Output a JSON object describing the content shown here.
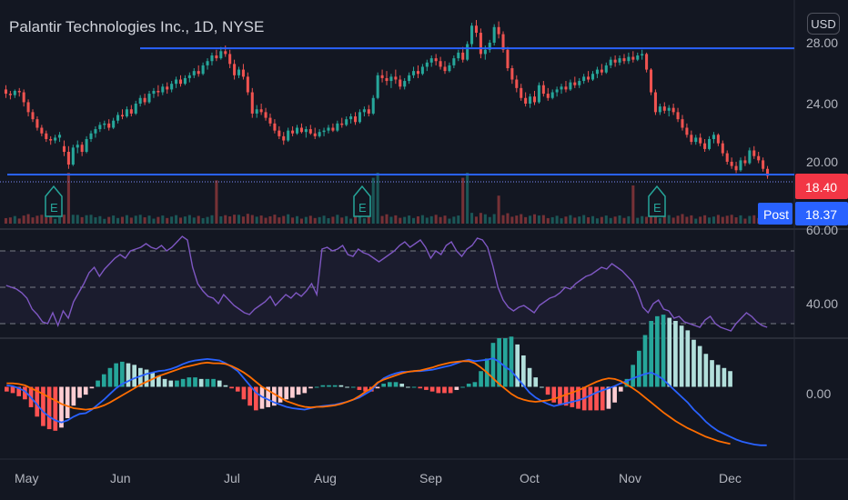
{
  "header": {
    "title": "Palantir Technologies Inc., 1D, NYSE",
    "currency": "USD"
  },
  "price_axis": {
    "ticks": [
      "28.00",
      "24.00",
      "20.00"
    ],
    "last_price": "18.40",
    "post_label": "Post",
    "post_price": "18.37"
  },
  "rsi_axis": {
    "ticks": [
      "60.00",
      "40.00"
    ]
  },
  "macd_axis": {
    "ticks": [
      "0.00"
    ]
  },
  "time_axis": {
    "ticks": [
      "May",
      "Jun",
      "Jul",
      "Aug",
      "Sep",
      "Oct",
      "Nov",
      "Dec"
    ]
  },
  "colors": {
    "up": "#26a69a",
    "down": "#ef5350",
    "line": "#2962ff",
    "rsi": "#7e57c2",
    "macd": "#2962ff",
    "signal": "#ff6d00",
    "hist_up_strong": "#26a69a",
    "hist_up_weak": "#b2dfdb",
    "hist_down_strong": "#ff5252",
    "hist_down_weak": "#ffcdd2",
    "last_tag": "#f23645",
    "post_tag": "#2962ff"
  },
  "earnings_marker": "E",
  "chart_data": {
    "type": "candlestick",
    "price_ylim": [
      17.6,
      29.4
    ],
    "horizontal_lines": [
      27.4,
      18.5
    ],
    "earnings_months": [
      "May",
      "Aug",
      "Nov"
    ],
    "candles": [
      [
        24.5,
        24.8,
        23.9,
        24.2
      ],
      [
        24.2,
        24.4,
        23.8,
        24.1
      ],
      [
        24.1,
        24.5,
        23.9,
        24.4
      ],
      [
        24.4,
        24.6,
        24.0,
        24.3
      ],
      [
        24.3,
        24.5,
        23.3,
        23.6
      ],
      [
        23.6,
        23.8,
        22.6,
        22.9
      ],
      [
        22.9,
        23.1,
        22.2,
        22.4
      ],
      [
        22.4,
        22.6,
        21.6,
        21.8
      ],
      [
        21.8,
        22.0,
        21.2,
        21.4
      ],
      [
        21.4,
        21.6,
        20.8,
        21.0
      ],
      [
        21.0,
        21.2,
        20.6,
        20.9
      ],
      [
        20.9,
        21.3,
        20.7,
        21.1
      ],
      [
        21.1,
        21.5,
        20.8,
        21.3
      ],
      [
        20.5,
        20.9,
        19.8,
        20.1
      ],
      [
        20.1,
        20.5,
        18.9,
        19.2
      ],
      [
        19.2,
        20.6,
        19.1,
        20.4
      ],
      [
        20.4,
        20.9,
        20.0,
        20.6
      ],
      [
        20.6,
        20.8,
        19.8,
        20.1
      ],
      [
        20.1,
        21.2,
        20.0,
        21.0
      ],
      [
        21.0,
        21.6,
        20.8,
        21.4
      ],
      [
        21.4,
        21.9,
        21.1,
        21.7
      ],
      [
        21.7,
        22.2,
        21.5,
        22.0
      ],
      [
        22.0,
        22.3,
        21.7,
        22.1
      ],
      [
        22.1,
        22.4,
        21.6,
        21.8
      ],
      [
        21.8,
        22.5,
        21.7,
        22.3
      ],
      [
        22.3,
        22.9,
        22.1,
        22.7
      ],
      [
        22.7,
        23.1,
        22.4,
        22.6
      ],
      [
        22.6,
        23.3,
        22.5,
        23.1
      ],
      [
        23.1,
        23.4,
        22.6,
        22.8
      ],
      [
        22.8,
        23.7,
        22.7,
        23.5
      ],
      [
        23.5,
        24.1,
        23.3,
        23.9
      ],
      [
        23.9,
        24.2,
        23.4,
        23.6
      ],
      [
        23.6,
        24.4,
        23.5,
        24.2
      ],
      [
        24.2,
        24.6,
        23.9,
        24.4
      ],
      [
        24.4,
        24.8,
        24.0,
        24.3
      ],
      [
        24.3,
        24.9,
        24.1,
        24.7
      ],
      [
        24.7,
        25.0,
        24.2,
        24.5
      ],
      [
        24.5,
        25.1,
        24.3,
        24.9
      ],
      [
        24.9,
        25.4,
        24.6,
        25.2
      ],
      [
        25.2,
        25.5,
        24.7,
        24.9
      ],
      [
        24.9,
        25.5,
        24.8,
        25.3
      ],
      [
        25.3,
        25.7,
        25.0,
        25.5
      ],
      [
        25.5,
        26.0,
        25.3,
        25.8
      ],
      [
        25.8,
        26.2,
        25.4,
        25.6
      ],
      [
        25.6,
        26.4,
        25.5,
        26.2
      ],
      [
        26.2,
        26.7,
        25.9,
        26.5
      ],
      [
        26.5,
        27.1,
        26.2,
        26.9
      ],
      [
        26.9,
        27.3,
        26.5,
        26.7
      ],
      [
        26.7,
        27.5,
        26.6,
        27.2
      ],
      [
        27.2,
        27.6,
        26.8,
        27.0
      ],
      [
        27.0,
        27.3,
        26.0,
        26.3
      ],
      [
        26.3,
        26.6,
        25.2,
        25.5
      ],
      [
        25.5,
        26.1,
        25.3,
        25.9
      ],
      [
        25.9,
        26.3,
        25.2,
        25.4
      ],
      [
        25.4,
        25.7,
        24.1,
        24.3
      ],
      [
        24.3,
        24.6,
        22.5,
        22.8
      ],
      [
        22.8,
        23.4,
        22.5,
        23.1
      ],
      [
        23.1,
        23.5,
        22.7,
        22.9
      ],
      [
        22.9,
        23.2,
        22.3,
        22.5
      ],
      [
        22.5,
        22.8,
        21.9,
        22.1
      ],
      [
        22.1,
        22.4,
        21.4,
        21.6
      ],
      [
        21.6,
        21.9,
        21.0,
        21.2
      ],
      [
        21.2,
        21.5,
        20.6,
        20.9
      ],
      [
        20.9,
        21.8,
        20.8,
        21.6
      ],
      [
        21.6,
        21.9,
        21.2,
        21.4
      ],
      [
        21.4,
        22.0,
        21.3,
        21.8
      ],
      [
        21.8,
        22.1,
        21.4,
        21.5
      ],
      [
        21.5,
        21.9,
        21.1,
        21.7
      ],
      [
        21.7,
        22.0,
        21.3,
        21.4
      ],
      [
        21.4,
        21.8,
        21.0,
        21.2
      ],
      [
        21.2,
        21.7,
        21.1,
        21.5
      ],
      [
        21.5,
        21.8,
        21.2,
        21.6
      ],
      [
        21.6,
        22.0,
        21.4,
        21.8
      ],
      [
        21.8,
        22.1,
        21.5,
        21.6
      ],
      [
        21.6,
        22.3,
        21.5,
        22.1
      ],
      [
        22.1,
        22.5,
        21.8,
        22.0
      ],
      [
        22.0,
        22.6,
        21.9,
        22.4
      ],
      [
        22.4,
        22.8,
        22.1,
        22.6
      ],
      [
        22.6,
        22.9,
        22.0,
        22.2
      ],
      [
        22.2,
        23.1,
        22.1,
        22.9
      ],
      [
        22.9,
        23.3,
        22.6,
        23.1
      ],
      [
        23.1,
        23.4,
        22.6,
        22.8
      ],
      [
        22.8,
        24.1,
        22.7,
        23.9
      ],
      [
        23.9,
        25.7,
        23.8,
        25.5
      ],
      [
        25.5,
        25.9,
        25.0,
        25.3
      ],
      [
        25.3,
        25.8,
        24.8,
        25.1
      ],
      [
        25.1,
        25.6,
        24.6,
        25.4
      ],
      [
        25.4,
        25.9,
        24.9,
        25.2
      ],
      [
        25.2,
        25.5,
        24.5,
        24.7
      ],
      [
        24.7,
        25.3,
        24.5,
        25.1
      ],
      [
        25.1,
        25.7,
        24.9,
        25.5
      ],
      [
        25.5,
        26.1,
        25.3,
        25.8
      ],
      [
        25.8,
        26.2,
        25.3,
        25.6
      ],
      [
        25.6,
        26.3,
        25.5,
        26.1
      ],
      [
        26.1,
        26.6,
        25.8,
        26.4
      ],
      [
        26.4,
        26.9,
        26.1,
        26.7
      ],
      [
        26.7,
        27.0,
        26.2,
        26.5
      ],
      [
        26.5,
        26.8,
        25.9,
        26.1
      ],
      [
        26.1,
        26.5,
        25.6,
        25.8
      ],
      [
        25.8,
        26.4,
        25.7,
        26.2
      ],
      [
        26.2,
        26.9,
        26.0,
        26.7
      ],
      [
        26.7,
        27.3,
        26.5,
        27.1
      ],
      [
        27.1,
        27.5,
        26.4,
        26.6
      ],
      [
        26.6,
        27.9,
        26.5,
        27.7
      ],
      [
        27.7,
        29.2,
        27.5,
        29.0
      ],
      [
        29.0,
        29.4,
        28.2,
        28.5
      ],
      [
        28.5,
        28.8,
        26.7,
        27.0
      ],
      [
        27.0,
        27.6,
        26.6,
        27.3
      ],
      [
        27.3,
        28.0,
        27.1,
        27.8
      ],
      [
        27.8,
        29.1,
        27.6,
        28.9
      ],
      [
        28.9,
        29.3,
        28.1,
        28.4
      ],
      [
        28.4,
        28.6,
        27.1,
        27.3
      ],
      [
        27.3,
        27.5,
        25.8,
        26.0
      ],
      [
        26.0,
        26.2,
        24.9,
        25.2
      ],
      [
        25.2,
        25.5,
        24.3,
        24.6
      ],
      [
        24.6,
        24.9,
        23.7,
        23.9
      ],
      [
        23.9,
        24.3,
        23.3,
        23.5
      ],
      [
        23.5,
        24.2,
        23.2,
        24.0
      ],
      [
        24.0,
        24.4,
        23.4,
        23.6
      ],
      [
        23.6,
        25.0,
        23.5,
        24.8
      ],
      [
        24.8,
        25.1,
        24.0,
        24.2
      ],
      [
        24.2,
        24.6,
        23.7,
        23.9
      ],
      [
        23.9,
        24.5,
        23.8,
        24.3
      ],
      [
        24.3,
        24.7,
        24.0,
        24.5
      ],
      [
        24.5,
        24.9,
        24.2,
        24.7
      ],
      [
        24.7,
        25.1,
        24.3,
        24.5
      ],
      [
        24.5,
        25.2,
        24.4,
        25.0
      ],
      [
        25.0,
        25.4,
        24.6,
        24.8
      ],
      [
        24.8,
        25.3,
        24.6,
        25.1
      ],
      [
        25.1,
        25.6,
        24.9,
        25.4
      ],
      [
        25.4,
        25.8,
        25.0,
        25.2
      ],
      [
        25.2,
        25.8,
        25.1,
        25.6
      ],
      [
        25.6,
        26.1,
        25.3,
        25.9
      ],
      [
        25.9,
        26.3,
        25.5,
        25.7
      ],
      [
        25.7,
        26.4,
        25.6,
        26.2
      ],
      [
        26.2,
        26.8,
        26.0,
        26.6
      ],
      [
        26.6,
        26.9,
        26.1,
        26.4
      ],
      [
        26.4,
        26.9,
        26.2,
        26.7
      ],
      [
        26.7,
        27.0,
        26.3,
        26.5
      ],
      [
        26.5,
        27.1,
        26.3,
        26.8
      ],
      [
        26.8,
        27.2,
        26.4,
        26.6
      ],
      [
        26.6,
        27.1,
        26.5,
        26.9
      ],
      [
        26.9,
        27.3,
        26.6,
        27.0
      ],
      [
        27.0,
        27.1,
        25.7,
        25.9
      ],
      [
        25.9,
        26.0,
        24.1,
        24.3
      ],
      [
        24.3,
        24.5,
        22.7,
        22.9
      ],
      [
        22.9,
        23.5,
        22.7,
        23.3
      ],
      [
        23.3,
        23.6,
        22.8,
        23.0
      ],
      [
        23.0,
        23.4,
        22.6,
        23.2
      ],
      [
        23.2,
        23.5,
        22.7,
        22.9
      ],
      [
        22.9,
        23.2,
        22.2,
        22.4
      ],
      [
        22.4,
        22.7,
        21.6,
        21.8
      ],
      [
        21.8,
        22.1,
        21.1,
        21.3
      ],
      [
        21.3,
        21.6,
        20.6,
        20.8
      ],
      [
        20.8,
        21.3,
        20.6,
        21.1
      ],
      [
        21.1,
        21.4,
        20.5,
        20.7
      ],
      [
        20.7,
        21.0,
        20.1,
        20.3
      ],
      [
        20.3,
        21.2,
        20.2,
        21.0
      ],
      [
        21.0,
        21.5,
        20.7,
        21.3
      ],
      [
        21.3,
        21.4,
        20.5,
        20.7
      ],
      [
        20.7,
        20.9,
        19.8,
        20.0
      ],
      [
        20.0,
        20.2,
        19.2,
        19.4
      ],
      [
        19.4,
        19.7,
        18.9,
        19.1
      ],
      [
        19.1,
        19.4,
        18.6,
        18.8
      ],
      [
        18.8,
        19.7,
        18.7,
        19.5
      ],
      [
        19.5,
        19.8,
        19.1,
        19.3
      ],
      [
        19.3,
        20.4,
        19.2,
        20.2
      ],
      [
        20.2,
        20.5,
        19.6,
        19.8
      ],
      [
        19.8,
        20.1,
        19.3,
        19.5
      ],
      [
        19.5,
        19.7,
        18.7,
        18.9
      ],
      [
        18.9,
        19.1,
        18.2,
        18.4
      ]
    ],
    "rsi_ylim": [
      22,
      82
    ],
    "rsi_levels": [
      70,
      50,
      30
    ],
    "rsi": [
      51,
      50,
      49,
      47,
      44,
      38,
      35,
      31,
      30,
      36,
      29,
      37,
      33,
      42,
      47,
      52,
      58,
      61,
      56,
      60,
      63,
      66,
      68,
      66,
      70,
      71,
      72,
      74,
      72,
      71,
      73,
      70,
      72,
      75,
      78,
      76,
      61,
      52,
      48,
      45,
      44,
      41,
      46,
      43,
      40,
      38,
      36,
      35,
      38,
      40,
      42,
      45,
      40,
      43,
      46,
      44,
      47,
      45,
      48,
      52,
      46,
      71,
      72,
      70,
      71,
      73,
      68,
      67,
      71,
      69,
      68,
      66,
      64,
      66,
      68,
      70,
      73,
      75,
      72,
      74,
      76,
      72,
      66,
      70,
      68,
      73,
      75,
      70,
      67,
      71,
      73,
      77,
      76,
      72,
      62,
      50,
      43,
      39,
      37,
      39,
      40,
      38,
      36,
      40,
      42,
      44,
      45,
      47,
      50,
      49,
      52,
      54,
      56,
      57,
      59,
      61,
      60,
      63,
      61,
      59,
      56,
      53,
      47,
      39,
      36,
      41,
      43,
      38,
      37,
      33,
      34,
      31,
      30,
      29,
      28,
      32,
      34,
      30,
      28,
      27,
      26,
      30,
      33,
      36,
      34,
      31,
      29,
      28
    ],
    "macd_ylim": [
      -0.95,
      0.58
    ],
    "macd": [
      0.02,
      0.01,
      -0.02,
      -0.06,
      -0.15,
      -0.25,
      -0.35,
      -0.42,
      -0.47,
      -0.5,
      -0.47,
      -0.42,
      -0.38,
      -0.37,
      -0.32,
      -0.25,
      -0.18,
      -0.1,
      -0.02,
      0.04,
      0.08,
      0.12,
      0.15,
      0.18,
      0.2,
      0.22,
      0.23,
      0.25,
      0.28,
      0.32,
      0.35,
      0.37,
      0.38,
      0.39,
      0.38,
      0.37,
      0.33,
      0.28,
      0.22,
      0.12,
      0.02,
      -0.08,
      -0.14,
      -0.18,
      -0.22,
      -0.25,
      -0.28,
      -0.3,
      -0.31,
      -0.32,
      -0.3,
      -0.28,
      -0.27,
      -0.26,
      -0.25,
      -0.23,
      -0.21,
      -0.18,
      -0.15,
      -0.1,
      -0.05,
      0.05,
      0.12,
      0.16,
      0.19,
      0.21,
      0.21,
      0.22,
      0.22,
      0.23,
      0.24,
      0.26,
      0.28,
      0.3,
      0.33,
      0.36,
      0.38,
      0.36,
      0.37,
      0.38,
      0.4,
      0.35,
      0.28,
      0.22,
      0.12,
      0.02,
      -0.08,
      -0.15,
      -0.2,
      -0.24,
      -0.27,
      -0.25,
      -0.23,
      -0.21,
      -0.19,
      -0.16,
      -0.12,
      -0.08,
      -0.05,
      -0.02,
      0.01,
      0.05,
      0.08,
      0.12,
      0.15,
      0.18,
      0.2,
      0.16,
      0.1,
      0.02,
      -0.06,
      -0.14,
      -0.22,
      -0.32,
      -0.4,
      -0.49,
      -0.56,
      -0.62,
      -0.66,
      -0.7,
      -0.74,
      -0.77,
      -0.79,
      -0.81,
      -0.82,
      -0.82
    ],
    "signal": [
      0.05,
      0.05,
      0.04,
      0.02,
      -0.02,
      -0.06,
      -0.1,
      -0.15,
      -0.19,
      -0.24,
      -0.27,
      -0.3,
      -0.31,
      -0.32,
      -0.31,
      -0.29,
      -0.26,
      -0.22,
      -0.17,
      -0.12,
      -0.07,
      -0.02,
      0.03,
      0.07,
      0.11,
      0.15,
      0.18,
      0.21,
      0.24,
      0.27,
      0.29,
      0.31,
      0.33,
      0.34,
      0.33,
      0.33,
      0.32,
      0.29,
      0.25,
      0.2,
      0.14,
      0.07,
      0.0,
      -0.05,
      -0.1,
      -0.15,
      -0.2,
      -0.23,
      -0.26,
      -0.28,
      -0.29,
      -0.28,
      -0.28,
      -0.27,
      -0.26,
      -0.24,
      -0.21,
      -0.18,
      -0.13,
      -0.07,
      -0.02,
      0.06,
      0.1,
      0.13,
      0.16,
      0.19,
      0.21,
      0.22,
      0.23,
      0.25,
      0.27,
      0.3,
      0.32,
      0.34,
      0.35,
      0.36,
      0.36,
      0.33,
      0.27,
      0.2,
      0.12,
      0.04,
      -0.03,
      -0.1,
      -0.15,
      -0.18,
      -0.2,
      -0.21,
      -0.2,
      -0.19,
      -0.17,
      -0.14,
      -0.11,
      -0.08,
      -0.05,
      -0.01,
      0.03,
      0.07,
      0.1,
      0.12,
      0.11,
      0.08,
      0.03,
      -0.02,
      -0.08,
      -0.15,
      -0.22,
      -0.29,
      -0.36,
      -0.42,
      -0.48,
      -0.53,
      -0.58,
      -0.62,
      -0.66,
      -0.7,
      -0.73,
      -0.76,
      -0.78,
      -0.8
    ]
  }
}
